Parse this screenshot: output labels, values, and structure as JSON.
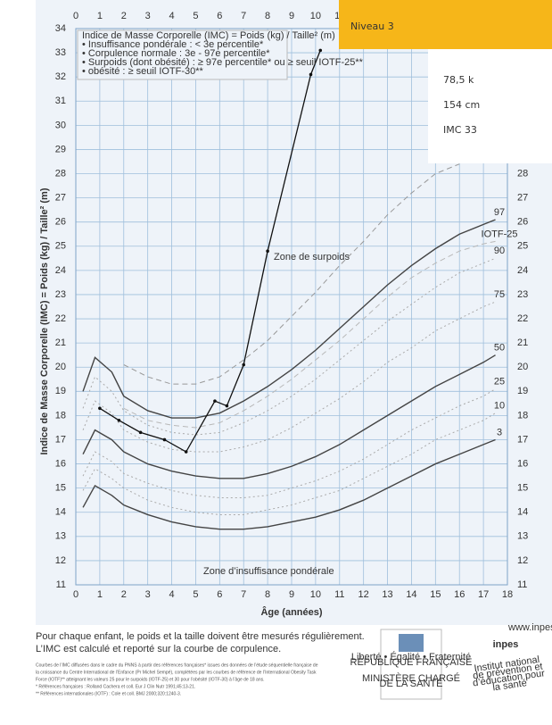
{
  "chart_data": {
    "type": "line",
    "y_label": "Indice de Masse Corporelle (IMC) = Poids (kg) / Taille² (m)",
    "x_label": "Âge (années)",
    "legend_box": [
      "Indice de Masse Corporelle (IMC) = Poids (kg) / Taille² (m)",
      "• Insuffisance pondérale : < 3e percentile*",
      "• Corpulence normale : 3e - 97e percentile*",
      "• Surpoids (dont obésité) : ≥ 97e percentile* ou ≥ seuil IOTF-25**",
      "• obésité : ≥ seuil IOTF-30**"
    ],
    "annotations": [
      "Zone de surpoids",
      "Zone d’insuffisance pondérale"
    ],
    "xlim": [
      0,
      18
    ],
    "xticks": [
      0,
      1,
      2,
      3,
      4,
      5,
      6,
      7,
      8,
      9,
      10,
      11,
      12,
      13,
      14,
      15,
      16,
      17,
      18
    ],
    "ylim": [
      11,
      34
    ],
    "yticks": [
      11,
      12,
      13,
      14,
      15,
      16,
      17,
      18,
      19,
      20,
      21,
      22,
      23,
      24,
      25,
      26,
      27,
      28,
      29,
      30,
      31,
      32,
      33,
      34
    ],
    "grid": true,
    "x": [
      0.3,
      0.8,
      1.5,
      2,
      3,
      4,
      5,
      6,
      7,
      8,
      9,
      10,
      11,
      12,
      13,
      14,
      15,
      16,
      17,
      17.5
    ],
    "series": [
      {
        "name": "97",
        "color": "#444444",
        "style": "solid",
        "values": [
          19.0,
          20.4,
          19.8,
          18.8,
          18.2,
          17.9,
          17.9,
          18.1,
          18.6,
          19.2,
          19.9,
          20.7,
          21.6,
          22.5,
          23.4,
          24.2,
          24.9,
          25.5,
          25.9,
          26.1
        ]
      },
      {
        "name": "90",
        "color": "#aaaaaa",
        "style": "dotted",
        "values": [
          18.3,
          19.6,
          19.0,
          18.2,
          17.6,
          17.3,
          17.2,
          17.3,
          17.7,
          18.2,
          18.8,
          19.5,
          20.3,
          21.1,
          21.9,
          22.6,
          23.3,
          23.9,
          24.3,
          24.5
        ]
      },
      {
        "name": "75",
        "color": "#aaaaaa",
        "style": "dotted",
        "values": [
          17.4,
          18.6,
          18.1,
          17.4,
          16.9,
          16.6,
          16.5,
          16.5,
          16.7,
          17.0,
          17.5,
          18.1,
          18.7,
          19.4,
          20.2,
          20.8,
          21.5,
          22.0,
          22.5,
          22.7
        ]
      },
      {
        "name": "50",
        "color": "#444444",
        "style": "solid",
        "values": [
          16.4,
          17.4,
          17.0,
          16.5,
          16.0,
          15.7,
          15.5,
          15.4,
          15.4,
          15.6,
          15.9,
          16.3,
          16.8,
          17.4,
          18.0,
          18.6,
          19.2,
          19.7,
          20.2,
          20.5
        ]
      },
      {
        "name": "25",
        "color": "#aaaaaa",
        "style": "dotted",
        "values": [
          15.5,
          16.5,
          16.1,
          15.6,
          15.2,
          14.9,
          14.7,
          14.6,
          14.6,
          14.7,
          15.0,
          15.3,
          15.7,
          16.2,
          16.8,
          17.4,
          17.9,
          18.4,
          18.8,
          19.1
        ]
      },
      {
        "name": "10",
        "color": "#aaaaaa",
        "style": "dotted",
        "values": [
          14.9,
          15.8,
          15.4,
          15.0,
          14.5,
          14.2,
          14.0,
          13.9,
          13.9,
          14.1,
          14.3,
          14.6,
          14.9,
          15.4,
          15.9,
          16.4,
          17.0,
          17.4,
          17.8,
          18.1
        ]
      },
      {
        "name": "3",
        "color": "#444444",
        "style": "solid",
        "values": [
          14.2,
          15.1,
          14.7,
          14.3,
          13.9,
          13.6,
          13.4,
          13.3,
          13.3,
          13.4,
          13.6,
          13.8,
          14.1,
          14.5,
          15.0,
          15.5,
          16.0,
          16.4,
          16.8,
          17.0
        ]
      },
      {
        "name": "IOTF-25",
        "color": "#b8b8b8",
        "style": "dashed",
        "values": [
          null,
          null,
          null,
          18.3,
          17.8,
          17.6,
          17.5,
          17.7,
          18.2,
          18.8,
          19.5,
          20.3,
          21.1,
          22.0,
          22.9,
          23.7,
          24.3,
          24.8,
          25.1,
          25.2
        ]
      },
      {
        "color": "#999999",
        "style": "dashed",
        "values": [
          null,
          null,
          null,
          20.1,
          19.6,
          19.3,
          19.3,
          19.6,
          20.3,
          21.1,
          22.1,
          23.1,
          24.2,
          25.2,
          26.3,
          27.2,
          28.0,
          28.4,
          null,
          null
        ]
      }
    ],
    "trajectory": {
      "color": "#111111",
      "x": [
        1,
        1.8,
        2.7,
        3.7,
        4.6,
        5.8,
        6.3,
        7,
        8,
        9.8,
        10.2
      ],
      "values": [
        18.3,
        17.8,
        17.3,
        17.0,
        16.5,
        18.6,
        18.4,
        20.1,
        24.8,
        32.1,
        33.1
      ]
    }
  },
  "overlay": {
    "level": "Niveau 3",
    "lines": [
      "78,5 k",
      "154 cm",
      "IMC 33"
    ]
  },
  "footer": {
    "lines": [
      "Pour chaque enfant, le poids et la taille doivent être mesurés régulièrement.",
      "L’IMC est calculé et reporté sur la courbe de corpulence."
    ],
    "notes": [
      "Courbes de l’IMC diffusées dans le cadre du PNNS à partir des références françaises* issues des données de l’étude séquentielle française de",
      "la croissance du Centre International de l’Enfance (Pr Michel Sempé), complétées par les courbes de référence de l’International Obesity Task",
      "Force (IOTF)** atteignant les valeurs 25 pour le surpoids (IOTF-25) et 30 pour l’obésité (IOTF-30) à l’âge de 18 ans.",
      "* Références françaises : Rolland Cachera et coll. Eur J Clin Nutr 1991;45:13-21.",
      "** Références internationales (IOTF) : Cole et coll. BMJ 2000;320:1240-3."
    ],
    "republic": [
      "Liberté • Égalité • Fraternité",
      "RÉPUBLIQUE FRANÇAISE"
    ],
    "ministry": [
      "MINISTÈRE CHARGÉ",
      "DE LA SANTÉ"
    ],
    "inpes_url": "www.inpes.sante.fr",
    "inpes": "inpes",
    "inpes_desc": [
      "Institut national",
      "de prévention et",
      "d’éducation pour",
      "la santé"
    ]
  }
}
